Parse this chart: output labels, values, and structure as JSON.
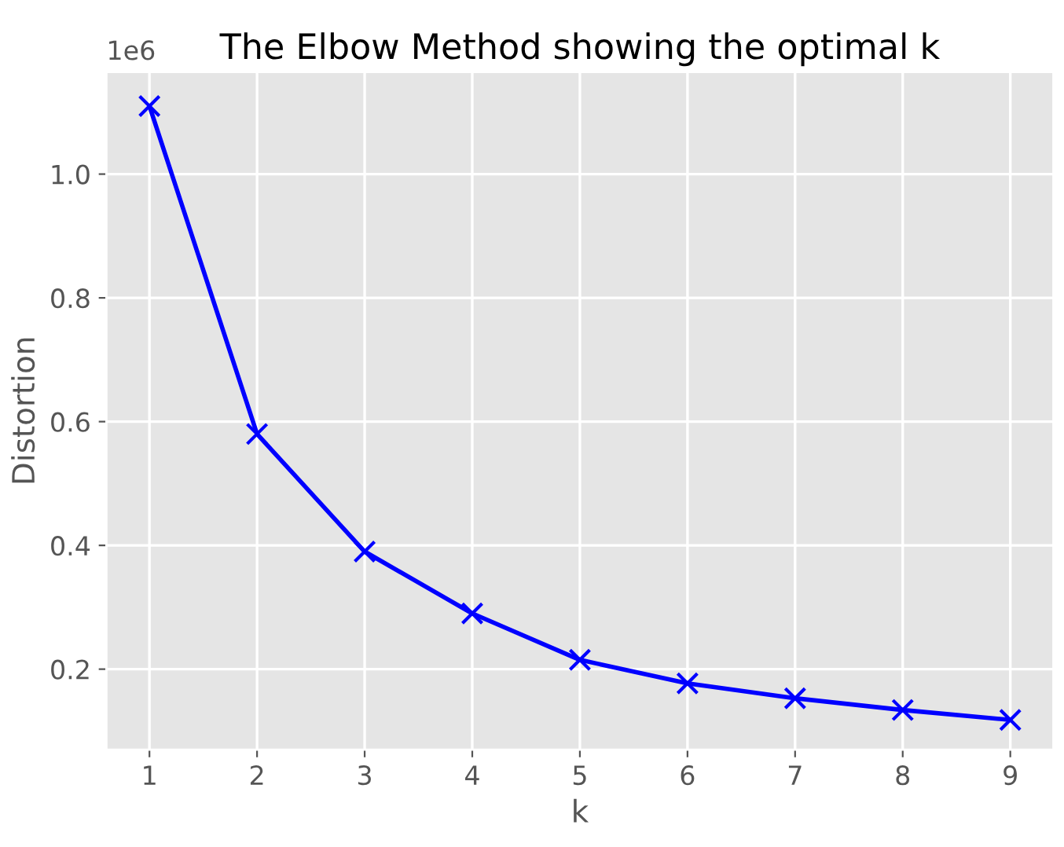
{
  "chart_data": {
    "type": "line",
    "title": "The Elbow Method showing the optimal k",
    "xlabel": "k",
    "ylabel": "Distortion",
    "x": [
      1,
      2,
      3,
      4,
      5,
      6,
      7,
      8,
      9
    ],
    "series": [
      {
        "color": "#0000ff",
        "values": [
          1.11,
          0.58,
          0.39,
          0.29,
          0.215,
          0.177,
          0.153,
          0.134,
          0.118
        ]
      }
    ],
    "xlim": [
      0.6,
      9.4
    ],
    "xticks": [
      1,
      2,
      3,
      4,
      5,
      6,
      7,
      8,
      9
    ],
    "ylim": [
      0.07,
      1.165
    ],
    "yticks": [
      0.2,
      0.4,
      0.6,
      0.8,
      {
        "value": 1.0,
        "label": "1.0"
      }
    ],
    "annotations": [
      "1e6"
    ],
    "grid": true,
    "marker": "cross",
    "line_style": "solid"
  }
}
